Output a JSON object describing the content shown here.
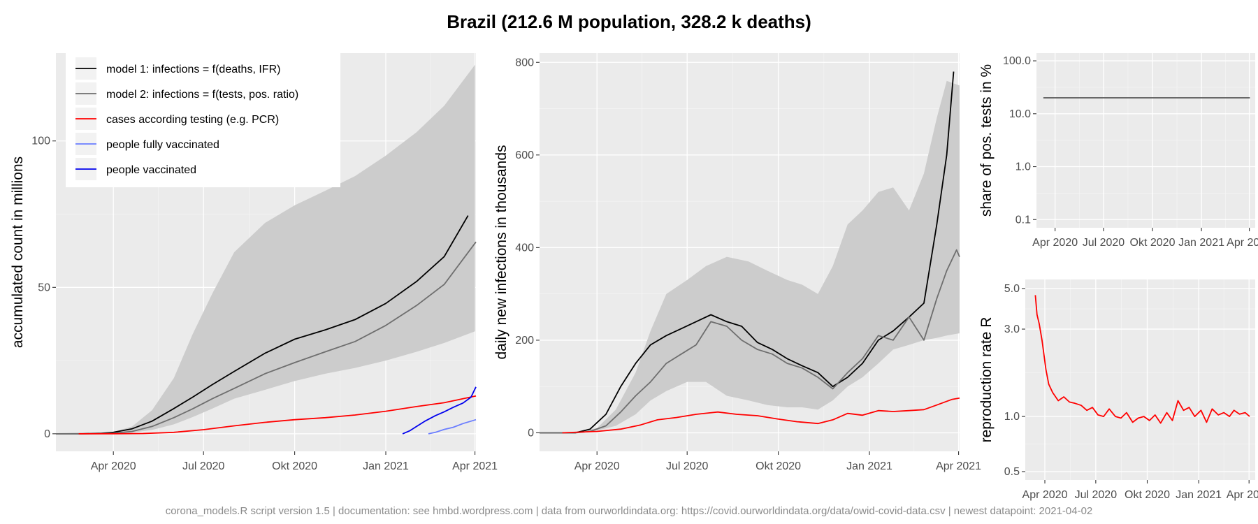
{
  "title": "Brazil (212.6 M population, 328.2 k deaths)",
  "footer": "corona_models.R script version 1.5 | documentation: see hmbd.wordpress.com | data from ourworldindata.org: https://covid.ourworldindata.org/data/owid-covid-data.csv | newest datapoint: 2021-04-02",
  "colors": {
    "model1": "#000000",
    "model2": "#6e6e6e",
    "cases": "#ff0000",
    "fully_vaccinated": "#6a7dff",
    "vaccinated": "#0000ee",
    "band": "#cccccc",
    "share": "#555555",
    "r": "#ff0000"
  },
  "chart_data": [
    {
      "id": "accumulated",
      "type": "line",
      "ylabel": "accumulated count in millions",
      "x_ticks": [
        {
          "date": "2020-04-01",
          "label": "Apr 2020"
        },
        {
          "date": "2020-07-01",
          "label": "Jul 2020"
        },
        {
          "date": "2020-10-01",
          "label": "Okt 2020"
        },
        {
          "date": "2021-01-01",
          "label": "Jan 2021"
        },
        {
          "date": "2021-04-01",
          "label": "Apr 2021"
        }
      ],
      "xlim": [
        "2020-02-03",
        "2021-04-02"
      ],
      "ylim": [
        -6,
        130
      ],
      "y_ticks": [
        {
          "value": 0,
          "label": "0"
        },
        {
          "value": 50,
          "label": "50"
        },
        {
          "value": 100,
          "label": "100"
        }
      ],
      "legend": {
        "position": "top-left",
        "entries": [
          {
            "label": "model 1: infections = f(deaths, IFR)",
            "color_key": "model1"
          },
          {
            "label": "model 2: infections = f(tests, pos. ratio)",
            "color_key": "model2"
          },
          {
            "label": "cases according testing (e.g. PCR)",
            "color_key": "cases"
          },
          {
            "label": "people fully vaccinated",
            "color_key": "fully_vaccinated"
          },
          {
            "label": "people vaccinated",
            "color_key": "vaccinated"
          }
        ]
      },
      "band": {
        "x": [
          "2020-02-24",
          "2020-03-15",
          "2020-04-01",
          "2020-04-20",
          "2020-05-10",
          "2020-06-01",
          "2020-06-20",
          "2020-07-10",
          "2020-08-01",
          "2020-09-01",
          "2020-10-01",
          "2020-11-01",
          "2020-12-01",
          "2021-01-01",
          "2021-02-01",
          "2021-03-01",
          "2021-04-01"
        ],
        "lower": [
          0,
          0,
          0.1,
          0.4,
          1.3,
          3.2,
          5.7,
          8.6,
          12,
          15,
          18,
          20.5,
          22.5,
          25,
          28,
          31,
          35
        ],
        "upper": [
          0,
          0.05,
          0.6,
          2.5,
          8,
          19,
          34,
          48,
          62,
          72,
          78,
          83,
          88,
          95,
          103,
          112,
          126
        ]
      },
      "series": [
        {
          "name": "model 1: infections = f(deaths, IFR)",
          "color_key": "model1",
          "x": [
            "2020-02-03",
            "2020-03-01",
            "2020-03-20",
            "2020-04-01",
            "2020-04-20",
            "2020-05-10",
            "2020-06-01",
            "2020-06-20",
            "2020-07-10",
            "2020-08-01",
            "2020-09-01",
            "2020-10-01",
            "2020-11-01",
            "2020-12-01",
            "2021-01-01",
            "2021-02-01",
            "2021-03-01",
            "2021-03-25"
          ],
          "y": [
            0,
            0.02,
            0.15,
            0.5,
            1.7,
            4.3,
            8.6,
            12.5,
            16.8,
            21.3,
            27.5,
            32.3,
            35.5,
            39,
            44.5,
            52,
            60.5,
            74.5
          ]
        },
        {
          "name": "model 2: infections = f(tests, pos. ratio)",
          "color_key": "model2",
          "x": [
            "2020-02-03",
            "2020-03-01",
            "2020-03-20",
            "2020-04-01",
            "2020-04-20",
            "2020-05-10",
            "2020-06-01",
            "2020-06-20",
            "2020-07-10",
            "2020-08-01",
            "2020-09-01",
            "2020-10-01",
            "2020-11-01",
            "2020-12-01",
            "2021-01-01",
            "2021-02-01",
            "2021-03-01",
            "2021-04-02"
          ],
          "y": [
            0,
            0,
            0.05,
            0.2,
            0.8,
            2.5,
            5.5,
            8.5,
            12,
            15.5,
            20.5,
            24.3,
            28,
            31.5,
            37,
            43.8,
            51,
            65.5
          ]
        },
        {
          "name": "cases according testing (e.g. PCR)",
          "color_key": "cases",
          "x": [
            "2020-02-26",
            "2020-04-01",
            "2020-05-01",
            "2020-06-01",
            "2020-07-01",
            "2020-08-01",
            "2020-09-01",
            "2020-10-01",
            "2020-11-01",
            "2020-12-01",
            "2021-01-01",
            "2021-02-01",
            "2021-03-01",
            "2021-04-02"
          ],
          "y": [
            0,
            0.01,
            0.09,
            0.5,
            1.4,
            2.7,
            3.9,
            4.8,
            5.5,
            6.4,
            7.7,
            9.3,
            10.6,
            12.9
          ]
        },
        {
          "name": "people fully vaccinated",
          "color_key": "fully_vaccinated",
          "x": [
            "2021-02-13",
            "2021-02-20",
            "2021-03-01",
            "2021-03-10",
            "2021-03-20",
            "2021-04-02"
          ],
          "y": [
            0,
            0.5,
            1.5,
            2.2,
            3.5,
            4.8
          ]
        },
        {
          "name": "people vaccinated",
          "color_key": "vaccinated",
          "x": [
            "2021-01-18",
            "2021-01-25",
            "2021-02-01",
            "2021-02-10",
            "2021-02-20",
            "2021-03-01",
            "2021-03-10",
            "2021-03-20",
            "2021-03-28",
            "2021-04-02"
          ],
          "y": [
            0,
            1,
            2.5,
            4.4,
            6.2,
            7.5,
            9,
            10.5,
            12.5,
            16
          ]
        }
      ]
    },
    {
      "id": "daily",
      "type": "line",
      "ylabel": "daily new infections in thousands",
      "x_ticks": [
        {
          "date": "2020-04-01",
          "label": "Apr 2020"
        },
        {
          "date": "2020-07-01",
          "label": "Jul 2020"
        },
        {
          "date": "2020-10-01",
          "label": "Okt 2020"
        },
        {
          "date": "2021-01-01",
          "label": "Jan 2021"
        },
        {
          "date": "2021-04-01",
          "label": "Apr 2021"
        }
      ],
      "xlim": [
        "2020-02-03",
        "2021-04-02"
      ],
      "ylim": [
        -40,
        820
      ],
      "y_ticks": [
        {
          "value": 0,
          "label": "0"
        },
        {
          "value": 200,
          "label": "200"
        },
        {
          "value": 400,
          "label": "400"
        },
        {
          "value": 600,
          "label": "600"
        },
        {
          "value": 800,
          "label": "800"
        }
      ],
      "band": {
        "x": [
          "2020-03-05",
          "2020-04-01",
          "2020-04-20",
          "2020-05-10",
          "2020-05-25",
          "2020-06-10",
          "2020-07-01",
          "2020-07-20",
          "2020-08-10",
          "2020-09-01",
          "2020-09-20",
          "2020-10-10",
          "2020-10-25",
          "2020-11-10",
          "2020-11-25",
          "2020-12-10",
          "2020-12-25",
          "2021-01-10",
          "2021-01-25",
          "2021-02-10",
          "2021-02-25",
          "2021-03-10",
          "2021-03-20",
          "2021-04-02"
        ],
        "lower": [
          0,
          5,
          15,
          40,
          70,
          90,
          110,
          110,
          80,
          70,
          60,
          55,
          55,
          50,
          70,
          100,
          120,
          150,
          180,
          190,
          200,
          205,
          210,
          215
        ],
        "upper": [
          0,
          10,
          50,
          130,
          220,
          300,
          330,
          360,
          380,
          370,
          350,
          330,
          320,
          300,
          360,
          450,
          480,
          520,
          530,
          480,
          560,
          680,
          760,
          750
        ]
      },
      "series": [
        {
          "name": "model 1: infections = f(deaths, IFR)",
          "color_key": "model1",
          "x": [
            "2020-02-03",
            "2020-03-10",
            "2020-03-25",
            "2020-04-10",
            "2020-04-25",
            "2020-05-10",
            "2020-05-25",
            "2020-06-10",
            "2020-06-25",
            "2020-07-10",
            "2020-07-25",
            "2020-08-10",
            "2020-08-25",
            "2020-09-10",
            "2020-09-25",
            "2020-10-10",
            "2020-10-25",
            "2020-11-10",
            "2020-11-25",
            "2020-12-10",
            "2020-12-25",
            "2021-01-10",
            "2021-01-25",
            "2021-02-10",
            "2021-02-25",
            "2021-03-10",
            "2021-03-20",
            "2021-03-27"
          ],
          "y": [
            0,
            0,
            8,
            40,
            100,
            150,
            190,
            210,
            225,
            240,
            255,
            240,
            230,
            195,
            180,
            160,
            145,
            130,
            100,
            120,
            150,
            200,
            220,
            250,
            280,
            450,
            600,
            780
          ]
        },
        {
          "name": "model 2: infections = f(tests, pos. ratio)",
          "color_key": "model2",
          "x": [
            "2020-02-03",
            "2020-03-10",
            "2020-03-25",
            "2020-04-10",
            "2020-04-25",
            "2020-05-10",
            "2020-05-25",
            "2020-06-10",
            "2020-06-25",
            "2020-07-10",
            "2020-07-25",
            "2020-08-10",
            "2020-08-25",
            "2020-09-10",
            "2020-09-25",
            "2020-10-10",
            "2020-10-25",
            "2020-11-10",
            "2020-11-25",
            "2020-12-10",
            "2020-12-25",
            "2021-01-10",
            "2021-01-25",
            "2021-02-10",
            "2021-02-25",
            "2021-03-10",
            "2021-03-20",
            "2021-03-30",
            "2021-04-02"
          ],
          "y": [
            0,
            0,
            3,
            15,
            45,
            80,
            110,
            150,
            170,
            190,
            240,
            230,
            200,
            180,
            170,
            150,
            140,
            120,
            95,
            130,
            160,
            210,
            200,
            250,
            200,
            290,
            350,
            395,
            380
          ]
        },
        {
          "name": "cases according testing (e.g. PCR)",
          "color_key": "cases",
          "x": [
            "2020-02-26",
            "2020-04-01",
            "2020-04-25",
            "2020-05-15",
            "2020-06-01",
            "2020-06-20",
            "2020-07-10",
            "2020-08-01",
            "2020-08-20",
            "2020-09-10",
            "2020-09-30",
            "2020-10-20",
            "2020-11-10",
            "2020-11-25",
            "2020-12-10",
            "2020-12-25",
            "2021-01-10",
            "2021-01-25",
            "2021-02-10",
            "2021-02-25",
            "2021-03-10",
            "2021-03-25",
            "2021-04-02"
          ],
          "y": [
            0,
            3,
            8,
            17,
            28,
            33,
            40,
            45,
            40,
            37,
            30,
            24,
            20,
            28,
            42,
            38,
            48,
            46,
            48,
            50,
            60,
            72,
            75
          ]
        }
      ]
    },
    {
      "id": "share",
      "type": "line",
      "ylabel": "share of pos. tests in %",
      "y_scale": "log10",
      "x_ticks": [
        {
          "date": "2020-04-01",
          "label": "Apr 2020"
        },
        {
          "date": "2020-07-01",
          "label": "Jul 2020"
        },
        {
          "date": "2020-10-01",
          "label": "Okt 2020"
        },
        {
          "date": "2021-01-01",
          "label": "Jan 2021"
        },
        {
          "date": "2021-04-01",
          "label": "Apr 2021"
        }
      ],
      "xlim": [
        "2020-02-26",
        "2021-04-12"
      ],
      "ylim": [
        0.07,
        140
      ],
      "y_ticks": [
        {
          "value": 0.1,
          "label": "0.1"
        },
        {
          "value": 1,
          "label": "1.0"
        },
        {
          "value": 10,
          "label": "10.0"
        },
        {
          "value": 100,
          "label": "100.0"
        }
      ],
      "series": [
        {
          "name": "",
          "color_key": "share",
          "x": [
            "2020-03-10",
            "2021-04-02"
          ],
          "y": [
            20,
            20
          ]
        }
      ]
    },
    {
      "id": "reproduction",
      "type": "line",
      "ylabel": "reproduction rate R",
      "y_scale": "log10",
      "x_ticks": [
        {
          "date": "2020-04-01",
          "label": "Apr 2020"
        },
        {
          "date": "2020-07-01",
          "label": "Jul 2020"
        },
        {
          "date": "2020-10-01",
          "label": "Okt 2020"
        },
        {
          "date": "2021-01-01",
          "label": "Jan 2021"
        },
        {
          "date": "2021-04-01",
          "label": "Apr 2021"
        }
      ],
      "xlim": [
        "2020-02-26",
        "2021-04-12"
      ],
      "ylim": [
        0.45,
        5.6
      ],
      "y_ticks": [
        {
          "value": 0.5,
          "label": "0.5"
        },
        {
          "value": 1,
          "label": "1.0"
        },
        {
          "value": 3,
          "label": "3.0"
        },
        {
          "value": 5,
          "label": "5.0"
        }
      ],
      "series": [
        {
          "name": "",
          "color_key": "r",
          "x": [
            "2020-03-15",
            "2020-03-18",
            "2020-03-22",
            "2020-03-27",
            "2020-04-03",
            "2020-04-08",
            "2020-04-15",
            "2020-04-25",
            "2020-05-05",
            "2020-05-15",
            "2020-05-25",
            "2020-06-05",
            "2020-06-15",
            "2020-06-25",
            "2020-07-05",
            "2020-07-15",
            "2020-07-25",
            "2020-08-05",
            "2020-08-15",
            "2020-08-25",
            "2020-09-05",
            "2020-09-15",
            "2020-09-25",
            "2020-10-05",
            "2020-10-15",
            "2020-10-25",
            "2020-11-05",
            "2020-11-15",
            "2020-11-25",
            "2020-12-05",
            "2020-12-15",
            "2020-12-25",
            "2021-01-05",
            "2021-01-15",
            "2021-01-25",
            "2021-02-05",
            "2021-02-15",
            "2021-02-25",
            "2021-03-05",
            "2021-03-15",
            "2021-03-25",
            "2021-04-02"
          ],
          "y": [
            4.6,
            3.6,
            3.2,
            2.6,
            1.8,
            1.5,
            1.35,
            1.22,
            1.28,
            1.2,
            1.18,
            1.15,
            1.08,
            1.12,
            1.02,
            1.0,
            1.1,
            1.0,
            0.98,
            1.05,
            0.93,
            0.98,
            1.0,
            0.95,
            1.02,
            0.92,
            1.05,
            0.95,
            1.22,
            1.08,
            1.12,
            1.0,
            1.08,
            0.93,
            1.1,
            1.02,
            1.05,
            1.0,
            1.08,
            1.03,
            1.05,
            1.0
          ]
        }
      ]
    }
  ]
}
